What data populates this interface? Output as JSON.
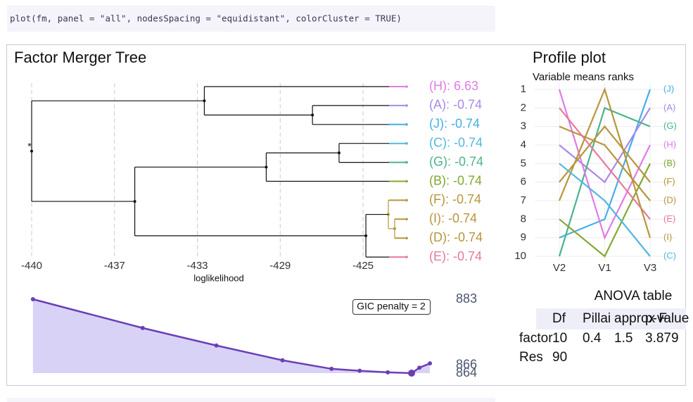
{
  "code": "plot(fm, panel = \"all\", nodesSpacing = \"equidistant\", colorCluster = TRUE)",
  "chart_data": [
    {
      "type": "dendrogram",
      "title": "Factor Merger Tree",
      "x_label": "loglikelihood",
      "root_label": "*",
      "xlim": [
        -440.4,
        -423.2
      ],
      "xticks": [
        {
          "value": -440.4,
          "label": "-440"
        },
        {
          "value": -436.6,
          "label": "-437"
        },
        {
          "value": -432.8,
          "label": "-433"
        },
        {
          "value": -429.0,
          "label": "-429"
        },
        {
          "value": -425.2,
          "label": "-425"
        }
      ],
      "grid": true,
      "leaves": [
        {
          "label": "(H): 6.63",
          "color": "#e07be6"
        },
        {
          "label": "(A): -0.74",
          "color": "#a98ae8"
        },
        {
          "label": "(J): -0.74",
          "color": "#45aee8"
        },
        {
          "label": "(C): -0.74",
          "color": "#50b8e0"
        },
        {
          "label": "(G): -0.74",
          "color": "#4cb38c"
        },
        {
          "label": "(B): -0.74",
          "color": "#84a832"
        },
        {
          "label": "(F): -0.74",
          "color": "#b8953a"
        },
        {
          "label": "(I): -0.74",
          "color": "#b8953a"
        },
        {
          "label": "(D): -0.74",
          "color": "#b8953a"
        },
        {
          "label": "(E): -0.74",
          "color": "#e8799a"
        }
      ],
      "merges": [
        {
          "children": [
            1,
            2
          ],
          "value": -427.52
        },
        {
          "children": [
            0,
            10
          ],
          "value": -432.48
        },
        {
          "children": [
            3,
            4
          ],
          "value": -426.3
        },
        {
          "children": [
            12,
            5
          ],
          "value": -429.64
        },
        {
          "children": [
            7,
            8
          ],
          "value": -423.75,
          "color": "#b8953a"
        },
        {
          "children": [
            6,
            14
          ],
          "value": -424.04,
          "color": "#b8953a"
        },
        {
          "children": [
            15,
            9
          ],
          "value": -425.07
        },
        {
          "children": [
            13,
            16
          ],
          "value": -435.67
        },
        {
          "children": [
            11,
            17
          ],
          "value": -440.4
        }
      ]
    },
    {
      "type": "line",
      "title": "Profile plot",
      "subtitle": "Variable means ranks",
      "categories": [
        "V2",
        "V1",
        "V3"
      ],
      "ylim": [
        1,
        10
      ],
      "y_reversed": true,
      "yticks": [
        1,
        2,
        3,
        4,
        5,
        6,
        7,
        8,
        9,
        10
      ],
      "grid": true,
      "series": [
        {
          "name": "(J)",
          "color": "#45aee8",
          "values": [
            9,
            8,
            1
          ]
        },
        {
          "name": "(A)",
          "color": "#a98ae8",
          "values": [
            4,
            6,
            2
          ]
        },
        {
          "name": "(G)",
          "color": "#4cb38c",
          "values": [
            10,
            2,
            3
          ]
        },
        {
          "name": "(H)",
          "color": "#e07be6",
          "values": [
            1,
            9,
            4
          ]
        },
        {
          "name": "(B)",
          "color": "#84a832",
          "values": [
            8,
            10,
            5
          ]
        },
        {
          "name": "(F)",
          "color": "#b8953a",
          "values": [
            6,
            3,
            6
          ]
        },
        {
          "name": "(D)",
          "color": "#b8953a",
          "values": [
            3,
            4,
            7
          ]
        },
        {
          "name": "(E)",
          "color": "#e8799a",
          "values": [
            2,
            5,
            8
          ]
        },
        {
          "name": "(I)",
          "color": "#b8953a",
          "values": [
            7,
            1,
            9
          ]
        },
        {
          "name": "(C)",
          "color": "#50b8e0",
          "values": [
            5,
            7,
            10
          ]
        }
      ]
    },
    {
      "type": "area",
      "annotation": "GIC penalty = 2",
      "color": "#6a3fb5",
      "fill": "#d9d2f7",
      "xlim": [
        -440.4,
        -421.9
      ],
      "ylim": [
        864,
        883
      ],
      "yticks": [
        883,
        866,
        864
      ],
      "x": [
        -440.34,
        -435.31,
        -431.93,
        -428.9,
        -426.65,
        -425.36,
        -424.07,
        -422.98,
        -422.62,
        -422.14
      ],
      "values": [
        883,
        875.6,
        871.1,
        867.3,
        865.1,
        864.6,
        864.2,
        864.0,
        865.4,
        866.5
      ]
    }
  ],
  "table": {
    "title": "ANOVA table",
    "header": [
      "Df",
      "Pillai",
      "approx F",
      "p-value"
    ],
    "rows": [
      [
        "factor",
        "10",
        "0.4",
        "1.5",
        "3.879"
      ],
      [
        "Res",
        "90"
      ]
    ]
  }
}
